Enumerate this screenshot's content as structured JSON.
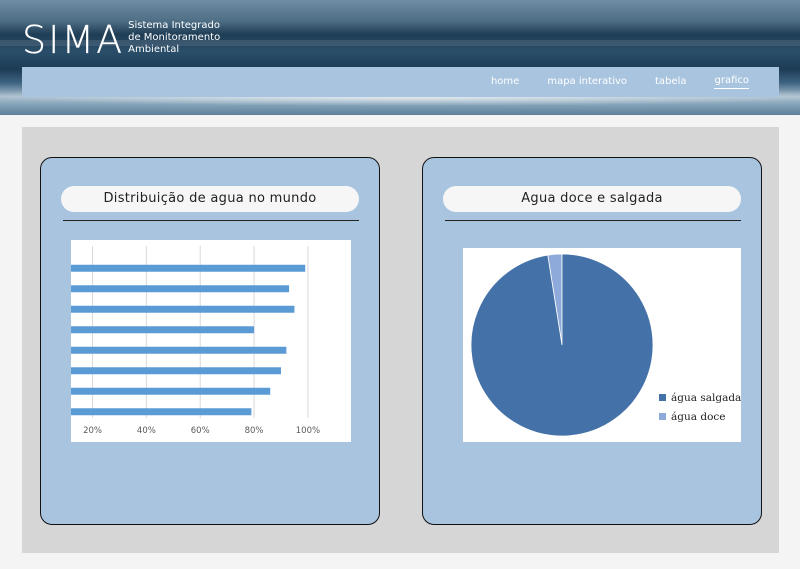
{
  "logo": {
    "title": "SIMA",
    "subtitle_line1": "Sistema Integrado",
    "subtitle_line2": "de Monitoramento",
    "subtitle_line3": "Ambiental"
  },
  "nav": {
    "items": [
      {
        "label": "home",
        "active": false
      },
      {
        "label": "mapa interativo",
        "active": false
      },
      {
        "label": "tabela",
        "active": false
      },
      {
        "label": "grafico",
        "active": true
      }
    ]
  },
  "cards": {
    "left": {
      "title": "Distribuição de agua no mundo"
    },
    "right": {
      "title": "Agua doce  e salgada"
    }
  },
  "colors": {
    "bar": "#5b9bd5",
    "pie_salt": "#4472a8",
    "pie_fresh": "#8eaadb"
  },
  "chart_data": [
    {
      "type": "bar",
      "orientation": "horizontal",
      "values": [
        0.99,
        0.93,
        0.95,
        0.8,
        0.92,
        0.9,
        0.86,
        0.79
      ],
      "xticks": [
        "20%",
        "40%",
        "60%",
        "80%",
        "100%"
      ],
      "xlim": [
        0.12,
        1.16
      ],
      "grid": true
    },
    {
      "type": "pie",
      "series": [
        {
          "name": "água salgada",
          "value": 97.5
        },
        {
          "name": "água doce",
          "value": 2.5
        }
      ],
      "legend": "right"
    }
  ]
}
